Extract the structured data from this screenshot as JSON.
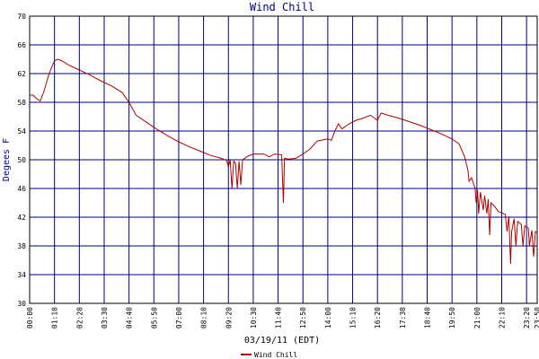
{
  "chart_data": {
    "type": "line",
    "title": "Wind Chill",
    "x_label": "03/19/11 (EDT)",
    "y_label": "Degees F",
    "x": [
      0,
      10,
      20,
      30,
      40,
      55,
      70,
      80,
      90,
      110,
      140,
      170,
      200,
      230,
      260,
      280,
      300,
      330,
      360,
      390,
      420,
      450,
      480,
      510,
      540,
      555,
      560,
      565,
      570,
      575,
      580,
      585,
      590,
      595,
      600,
      615,
      630,
      660,
      675,
      690,
      710,
      715,
      718,
      730,
      750,
      770,
      790,
      810,
      840,
      850,
      860,
      870,
      880,
      900,
      920,
      940,
      960,
      980,
      990,
      1010,
      1040,
      1070,
      1100,
      1130,
      1160,
      1190,
      1210,
      1225,
      1235,
      1238,
      1245,
      1255,
      1258,
      1262,
      1265,
      1270,
      1278,
      1282,
      1288,
      1292,
      1296,
      1300,
      1310,
      1320,
      1330,
      1340,
      1345,
      1350,
      1355,
      1358,
      1365,
      1370,
      1375,
      1385,
      1390,
      1395,
      1405,
      1408,
      1415,
      1420,
      1425,
      1430
    ],
    "series": [
      {
        "name": "Wind Chill",
        "color": "#b00000",
        "values": [
          59,
          59,
          58.5,
          58.2,
          59.5,
          62,
          63.8,
          64,
          63.8,
          63.2,
          62.5,
          61.8,
          61,
          60.3,
          59.4,
          58,
          56.2,
          55.2,
          54.2,
          53.3,
          52.5,
          51.8,
          51.2,
          50.6,
          50.2,
          49.9,
          49,
          50,
          46,
          49.8,
          49.5,
          46,
          49.8,
          46.5,
          50,
          50.5,
          50.8,
          50.8,
          50.4,
          50.8,
          50.7,
          44,
          50.2,
          50.1,
          50.2,
          50.8,
          51.5,
          52.6,
          52.9,
          52.7,
          54,
          55,
          54.3,
          55,
          55.5,
          55.8,
          56.2,
          55.5,
          56.5,
          56.2,
          55.8,
          55.3,
          54.8,
          54.2,
          53.6,
          52.9,
          52.2,
          50.5,
          48.5,
          47,
          47.5,
          46,
          44,
          45.8,
          42.5,
          45.5,
          43,
          45,
          42.5,
          44.5,
          39.5,
          44,
          43.5,
          42.8,
          42.6,
          42.4,
          40,
          42.1,
          35.5,
          40,
          41.8,
          38,
          41.4,
          41,
          38,
          40.8,
          40.5,
          38,
          40.2,
          36.5,
          40,
          39.8
        ]
      }
    ],
    "xlim": [
      0,
      1430
    ],
    "xticks": [
      {
        "value": 0,
        "label": "00:00"
      },
      {
        "value": 70,
        "label": "01:10"
      },
      {
        "value": 140,
        "label": "02:20"
      },
      {
        "value": 210,
        "label": "03:30"
      },
      {
        "value": 280,
        "label": "04:40"
      },
      {
        "value": 350,
        "label": "05:50"
      },
      {
        "value": 420,
        "label": "07:00"
      },
      {
        "value": 490,
        "label": "08:10"
      },
      {
        "value": 560,
        "label": "09:20"
      },
      {
        "value": 630,
        "label": "10:30"
      },
      {
        "value": 700,
        "label": "11:40"
      },
      {
        "value": 770,
        "label": "12:50"
      },
      {
        "value": 840,
        "label": "14:00"
      },
      {
        "value": 910,
        "label": "15:10"
      },
      {
        "value": 980,
        "label": "16:20"
      },
      {
        "value": 1050,
        "label": "17:30"
      },
      {
        "value": 1120,
        "label": "18:40"
      },
      {
        "value": 1190,
        "label": "19:50"
      },
      {
        "value": 1260,
        "label": "21:00"
      },
      {
        "value": 1330,
        "label": "22:10"
      },
      {
        "value": 1400,
        "label": "23:20"
      },
      {
        "value": 1430,
        "label": "23:50"
      }
    ],
    "ylim": [
      30,
      70
    ],
    "yticks": [
      30,
      34,
      38,
      42,
      46,
      50,
      54,
      58,
      62,
      66,
      70
    ],
    "grid": true
  }
}
